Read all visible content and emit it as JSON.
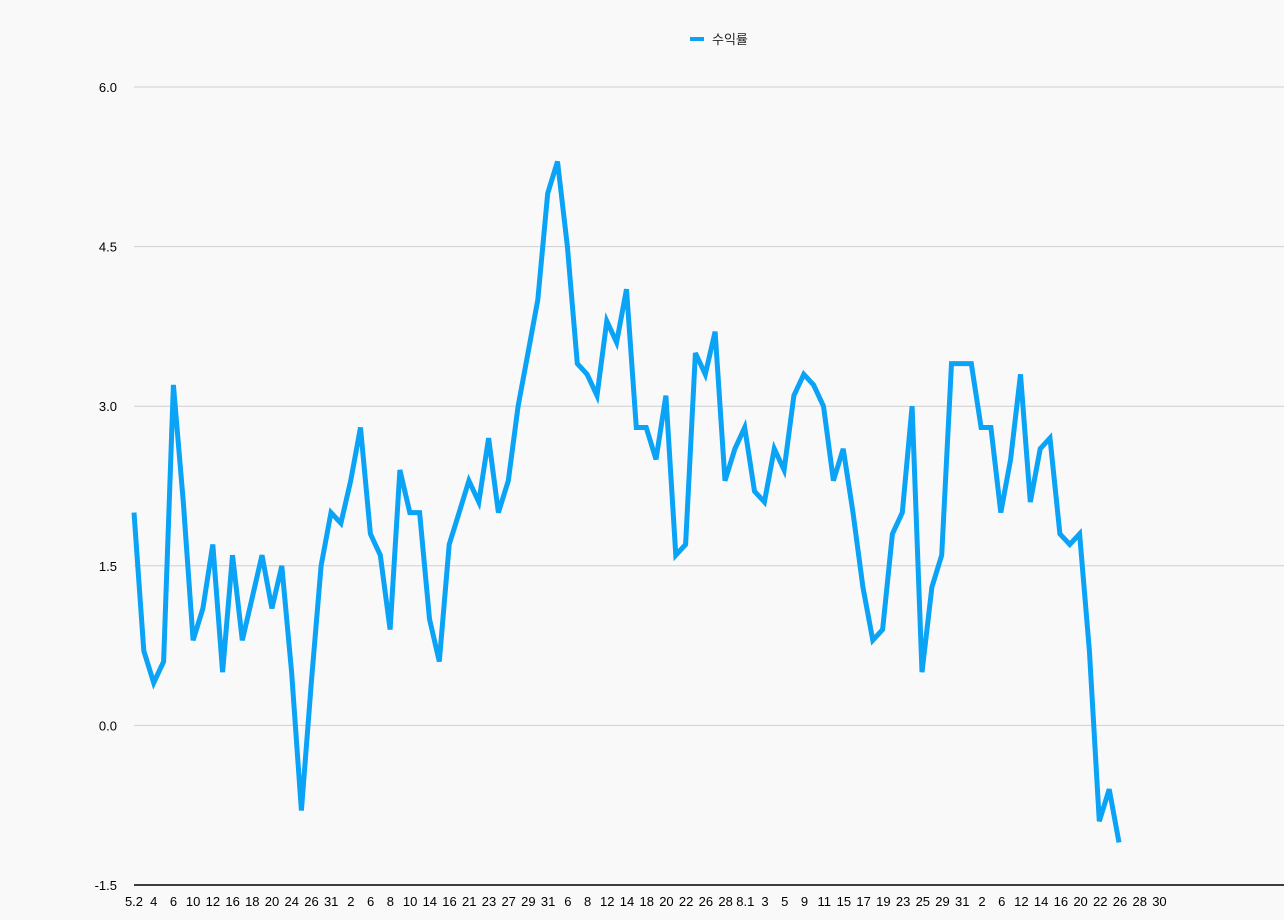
{
  "chart_data": {
    "type": "line",
    "title": "",
    "xlabel": "",
    "ylabel": "",
    "ylim": [
      -1.5,
      6.0
    ],
    "yticks": [
      "6.0",
      "4.5",
      "3.0",
      "1.5",
      "0.0",
      "-1.5"
    ],
    "grid": true,
    "legend_position": "top-center",
    "color": "#0aa3f5",
    "xticks": [
      "5.2",
      "4",
      "6",
      "10",
      "12",
      "16",
      "18",
      "20",
      "24",
      "26",
      "31",
      "2",
      "6",
      "8",
      "10",
      "14",
      "16",
      "21",
      "23",
      "27",
      "29",
      "31",
      "6",
      "8",
      "12",
      "14",
      "18",
      "20",
      "22",
      "26",
      "28",
      "8.1",
      "3",
      "5",
      "9",
      "11",
      "15",
      "17",
      "19",
      "23",
      "25",
      "29",
      "31",
      "2",
      "6",
      "12",
      "14",
      "16",
      "20",
      "22",
      "26",
      "28",
      "30"
    ],
    "series": [
      {
        "name": "수익률",
        "values": [
          2.0,
          0.7,
          0.4,
          0.6,
          3.2,
          2.1,
          0.8,
          1.1,
          1.7,
          0.5,
          1.6,
          0.8,
          1.2,
          1.6,
          1.1,
          1.5,
          0.5,
          -0.8,
          0.4,
          1.5,
          2.0,
          1.9,
          2.3,
          2.8,
          1.8,
          1.6,
          0.9,
          2.4,
          2.0,
          2.0,
          1.0,
          0.6,
          1.7,
          2.0,
          2.3,
          2.1,
          2.7,
          2.0,
          2.3,
          3.0,
          3.5,
          4.0,
          5.0,
          5.3,
          4.5,
          3.4,
          3.3,
          3.1,
          3.8,
          3.6,
          4.1,
          2.8,
          2.8,
          2.5,
          3.1,
          1.6,
          1.7,
          3.5,
          3.3,
          3.7,
          2.3,
          2.6,
          2.8,
          2.2,
          2.1,
          2.6,
          2.4,
          3.1,
          3.3,
          3.2,
          3.0,
          2.3,
          2.6,
          2.0,
          1.3,
          0.8,
          0.9,
          1.8,
          2.0,
          3.0,
          0.5,
          1.3,
          1.6,
          3.4,
          3.4,
          3.4,
          2.8,
          2.8,
          2.0,
          2.5,
          3.3,
          2.1,
          2.6,
          2.7,
          1.8,
          1.7,
          1.8,
          0.7,
          -0.9,
          -0.6,
          -1.1
        ]
      }
    ]
  }
}
